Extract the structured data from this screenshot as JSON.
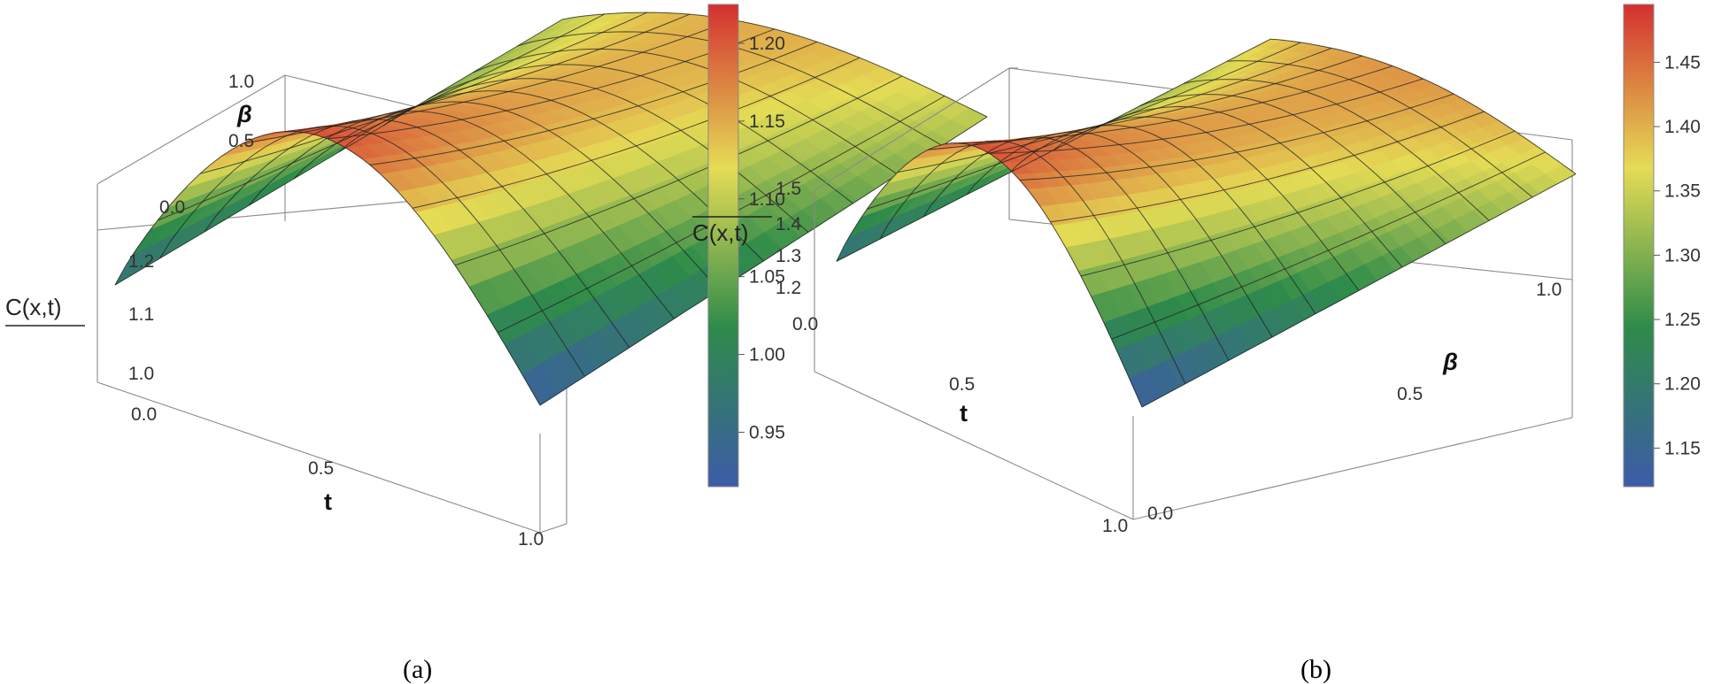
{
  "chart_data": [
    {
      "type": "surface3d",
      "panel": "a",
      "caption": "(a)",
      "xlabel": "t",
      "ylabel": "β",
      "zlabel": "C(x,t)",
      "x_ticks": [
        "0.0",
        "0.5",
        "1.0"
      ],
      "y_ticks": [
        "0.0",
        "0.5",
        "1.0"
      ],
      "z_ticks": [
        "1.0",
        "1.1",
        "1.2"
      ],
      "xlim": [
        0,
        1
      ],
      "ylim": [
        0,
        1
      ],
      "zlim": [
        0.92,
        1.22
      ],
      "colorbar": {
        "range": [
          0.915,
          1.225
        ],
        "ticks": [
          "0.95",
          "1.00",
          "1.05",
          "1.10",
          "1.15",
          "1.20"
        ],
        "colors": [
          "#3d5ba8",
          "#2e8b4a",
          "#e5dc55",
          "#d43030"
        ]
      },
      "surface_z_corners": {
        "t0_b0": 0.95,
        "t0_b1": 1.1,
        "t1_b0": 0.92,
        "t1_b1": 1.1,
        "peak": 1.22
      }
    },
    {
      "type": "surface3d",
      "panel": "b",
      "caption": "(b)",
      "xlabel": "t",
      "ylabel": "β",
      "zlabel": "C(x,t)",
      "x_ticks": [
        "0.0",
        "0.5",
        "1.0"
      ],
      "y_ticks": [
        "0.0",
        "0.5",
        "1.0"
      ],
      "z_ticks": [
        "1.2",
        "1.3",
        "1.4",
        "1.5"
      ],
      "xlim": [
        0,
        1
      ],
      "ylim": [
        0,
        1
      ],
      "zlim": [
        1.12,
        1.5
      ],
      "colorbar": {
        "range": [
          1.12,
          1.495
        ],
        "ticks": [
          "1.15",
          "1.20",
          "1.25",
          "1.30",
          "1.35",
          "1.40",
          "1.45"
        ],
        "colors": [
          "#3d5ba8",
          "#2e8b4a",
          "#e5dc55",
          "#d43030"
        ]
      },
      "surface_z_corners": {
        "t0_b0": 1.16,
        "t0_b1": 1.38,
        "t1_b0": 1.12,
        "t1_b1": 1.36,
        "peak": 1.49
      }
    }
  ]
}
